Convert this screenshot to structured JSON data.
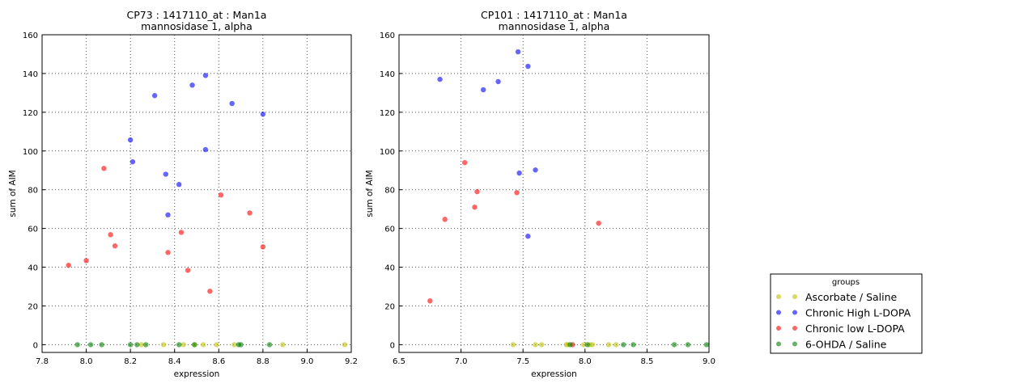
{
  "chart_data": [
    {
      "type": "scatter",
      "title": "CP73 : 1417110_at : Man1a",
      "subtitle": "mannosidase 1, alpha",
      "xlabel": "expression",
      "ylabel": "sum of AIM",
      "xlim": [
        7.8,
        9.2
      ],
      "ylim": [
        -4,
        160
      ],
      "xticks": [
        "7.8",
        "8.0",
        "8.2",
        "8.4",
        "8.6",
        "8.8",
        "9.0",
        "9.2"
      ],
      "yticks": [
        "0",
        "20",
        "40",
        "60",
        "80",
        "100",
        "120",
        "140",
        "160"
      ],
      "grid": true,
      "series": [
        {
          "name": "Ascorbate / Saline",
          "color": "#bfbf00",
          "points": [
            [
              8.25,
              0
            ],
            [
              8.35,
              0
            ],
            [
              8.44,
              0
            ],
            [
              8.49,
              0
            ],
            [
              8.53,
              0
            ],
            [
              8.59,
              0
            ],
            [
              8.67,
              0
            ],
            [
              8.89,
              0
            ],
            [
              9.17,
              0
            ]
          ]
        },
        {
          "name": "Chronic High L-DOPA",
          "color": "#0000ff",
          "points": [
            [
              8.2,
              105.7
            ],
            [
              8.21,
              94.4
            ],
            [
              8.31,
              128.6
            ],
            [
              8.36,
              88
            ],
            [
              8.37,
              67
            ],
            [
              8.42,
              82.7
            ],
            [
              8.48,
              134
            ],
            [
              8.54,
              139
            ],
            [
              8.54,
              100.7
            ],
            [
              8.66,
              124.5
            ],
            [
              8.8,
              119
            ]
          ]
        },
        {
          "name": "Chronic low L-DOPA",
          "color": "#ff0000",
          "points": [
            [
              7.92,
              41
            ],
            [
              8.0,
              43.4
            ],
            [
              8.08,
              91
            ],
            [
              8.11,
              56.8
            ],
            [
              8.13,
              51
            ],
            [
              8.37,
              47.6
            ],
            [
              8.43,
              58
            ],
            [
              8.46,
              38.4
            ],
            [
              8.56,
              27.6
            ],
            [
              8.61,
              77.3
            ],
            [
              8.74,
              68
            ],
            [
              8.8,
              50.5
            ]
          ]
        },
        {
          "name": "6-OHDA / Saline",
          "color": "#008000",
          "points": [
            [
              7.96,
              0
            ],
            [
              8.02,
              0
            ],
            [
              8.07,
              0
            ],
            [
              8.2,
              0
            ],
            [
              8.23,
              0
            ],
            [
              8.27,
              0
            ],
            [
              8.42,
              0
            ],
            [
              8.49,
              0
            ],
            [
              8.69,
              0
            ],
            [
              8.7,
              0
            ],
            [
              8.83,
              0
            ]
          ]
        }
      ]
    },
    {
      "type": "scatter",
      "title": "CP101 : 1417110_at : Man1a",
      "subtitle": "mannosidase 1, alpha",
      "xlabel": "expression",
      "ylabel": "sum of AIM",
      "xlim": [
        6.5,
        9.0
      ],
      "ylim": [
        -4,
        160
      ],
      "xticks": [
        "6.5",
        "7.0",
        "7.5",
        "8.0",
        "8.5",
        "9.0"
      ],
      "yticks": [
        "0",
        "20",
        "40",
        "60",
        "80",
        "100",
        "120",
        "140",
        "160"
      ],
      "grid": true,
      "series": [
        {
          "name": "Ascorbate / Saline",
          "color": "#bfbf00",
          "points": [
            [
              7.42,
              0
            ],
            [
              7.6,
              0
            ],
            [
              7.65,
              0
            ],
            [
              7.85,
              0
            ],
            [
              7.86,
              0
            ],
            [
              7.99,
              0
            ],
            [
              8.04,
              0
            ],
            [
              8.06,
              0
            ],
            [
              8.19,
              0
            ],
            [
              8.25,
              0
            ]
          ]
        },
        {
          "name": "Chronic High L-DOPA",
          "color": "#0000ff",
          "points": [
            [
              6.83,
              137
            ],
            [
              7.18,
              131.6
            ],
            [
              7.3,
              135.8
            ],
            [
              7.46,
              151.2
            ],
            [
              7.54,
              143.7
            ],
            [
              7.47,
              88.6
            ],
            [
              7.6,
              90.2
            ],
            [
              7.54,
              56
            ]
          ]
        },
        {
          "name": "Chronic low L-DOPA",
          "color": "#ff0000",
          "points": [
            [
              6.75,
              22.6
            ],
            [
              6.87,
              64.7
            ],
            [
              7.03,
              94
            ],
            [
              7.13,
              79
            ],
            [
              7.11,
              71
            ],
            [
              7.45,
              78.5
            ],
            [
              8.11,
              62.7
            ],
            [
              7.9,
              0
            ]
          ]
        },
        {
          "name": "6-OHDA / Saline",
          "color": "#008000",
          "points": [
            [
              7.88,
              0
            ],
            [
              8.02,
              0
            ],
            [
              8.31,
              0
            ],
            [
              8.39,
              0
            ],
            [
              8.72,
              0
            ],
            [
              8.83,
              0
            ],
            [
              8.98,
              0
            ]
          ]
        }
      ]
    }
  ],
  "legend": {
    "title": "groups",
    "placement": "lower-right outside",
    "entries": [
      "Ascorbate / Saline",
      "Chronic High L-DOPA",
      "Chronic low L-DOPA",
      "6-OHDA / Saline"
    ]
  }
}
